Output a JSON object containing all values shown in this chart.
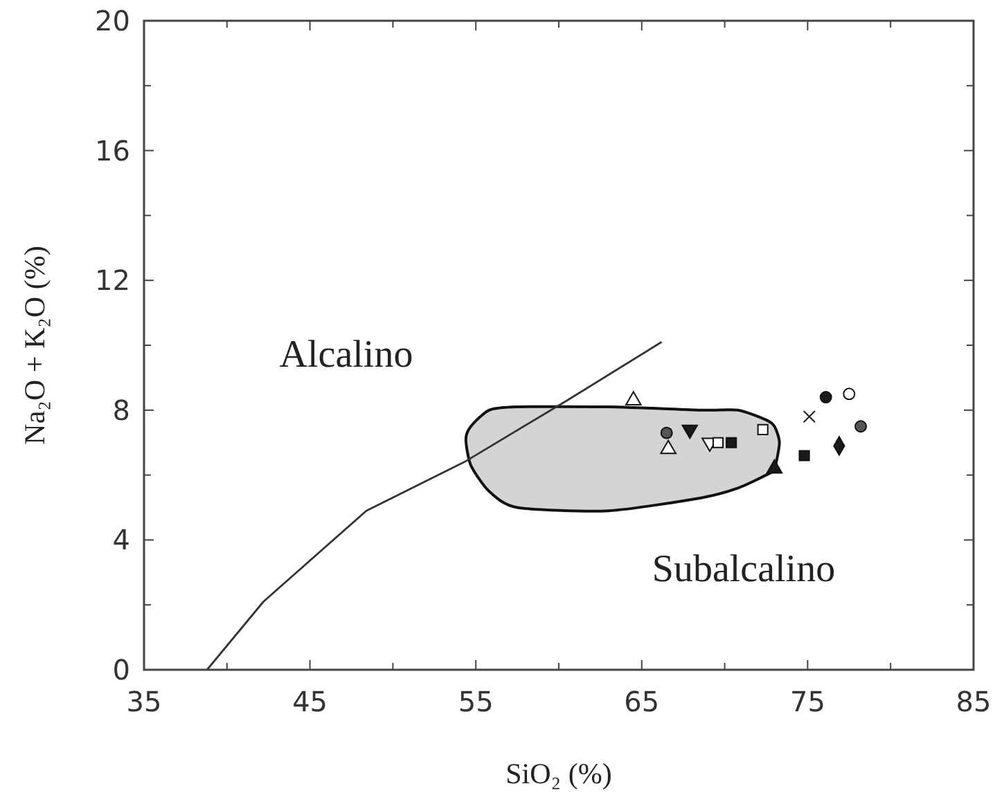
{
  "chart_data": {
    "type": "scatter",
    "xlabel": "SiO₂ (%)",
    "ylabel": "Na₂O + K₂O (%)",
    "xlim": [
      35,
      85
    ],
    "ylim": [
      0,
      20
    ],
    "xticks": [
      35,
      {
        "value": 40,
        "label": null
      },
      45,
      {
        "value": 50,
        "label": null
      },
      55,
      {
        "value": 60,
        "label": null
      },
      65,
      {
        "value": 70,
        "label": null
      },
      75,
      {
        "value": 80,
        "label": null
      },
      85
    ],
    "yticks": [
      0,
      {
        "value": 2,
        "label": null
      },
      4,
      {
        "value": 6,
        "label": null
      },
      8,
      {
        "value": 10,
        "label": null
      },
      12,
      {
        "value": 14,
        "label": null
      },
      16,
      {
        "value": 18,
        "label": null
      },
      20
    ],
    "grid": false,
    "series": [
      {
        "type": "area",
        "color": "#d4d4d4",
        "x": [
          54.4,
          54.7,
          55.8,
          57.5,
          63.0,
          68.6,
          70.8,
          72.5,
          73.0,
          73.3,
          73.0,
          72.5,
          70.8,
          68.6,
          63.0,
          57.5,
          55.8,
          54.7
        ],
        "values": [
          7.1,
          7.5,
          8.0,
          8.1,
          8.1,
          8.0,
          8.0,
          7.7,
          7.5,
          7.0,
          6.2,
          6.0,
          5.6,
          5.3,
          4.9,
          5.0,
          5.5,
          6.3
        ]
      },
      {
        "type": "line",
        "color": "#333333",
        "x": [
          38.8,
          42.2,
          48.4,
          54.3,
          60.5,
          66.2
        ],
        "values": [
          0,
          2.1,
          4.9,
          6.4,
          8.3,
          10.1
        ]
      },
      {
        "marker": "triangle",
        "color": "#ffffff",
        "x": [
          64.5,
          66.6
        ],
        "values": [
          8.3,
          6.8
        ]
      },
      {
        "marker": "triangle-down",
        "color": "#1a1a1a",
        "x": [
          67.9
        ],
        "values": [
          7.4
        ]
      },
      {
        "marker": "triangle-down",
        "color": "#ffffff",
        "x": [
          69.1
        ],
        "values": [
          7.0
        ]
      },
      {
        "marker": "circle",
        "color": "#555555",
        "x": [
          66.5,
          78.2
        ],
        "values": [
          7.3,
          7.5
        ]
      },
      {
        "marker": "square",
        "color": "#1a1a1a",
        "x": [
          70.4,
          74.8
        ],
        "values": [
          7.0,
          6.6
        ]
      },
      {
        "marker": "square",
        "color": "#ffffff",
        "x": [
          69.6,
          72.3
        ],
        "values": [
          7.0,
          7.4
        ]
      },
      {
        "marker": "triangle",
        "color": "#1a1a1a",
        "x": [
          73.0
        ],
        "values": [
          6.2
        ]
      },
      {
        "marker": "cross",
        "color": "#1a1a1a",
        "x": [
          75.1
        ],
        "values": [
          7.8
        ]
      },
      {
        "marker": "circle",
        "color": "#1a1a1a",
        "x": [
          76.1
        ],
        "values": [
          8.4
        ]
      },
      {
        "marker": "circle",
        "color": "#ffffff",
        "x": [
          77.5
        ],
        "values": [
          8.5
        ]
      },
      {
        "marker": "diamond",
        "color": "#1a1a1a",
        "x": [
          76.9
        ],
        "values": [
          6.9
        ]
      }
    ],
    "annotations": [
      "Alcalino",
      "Subalcalino"
    ]
  }
}
